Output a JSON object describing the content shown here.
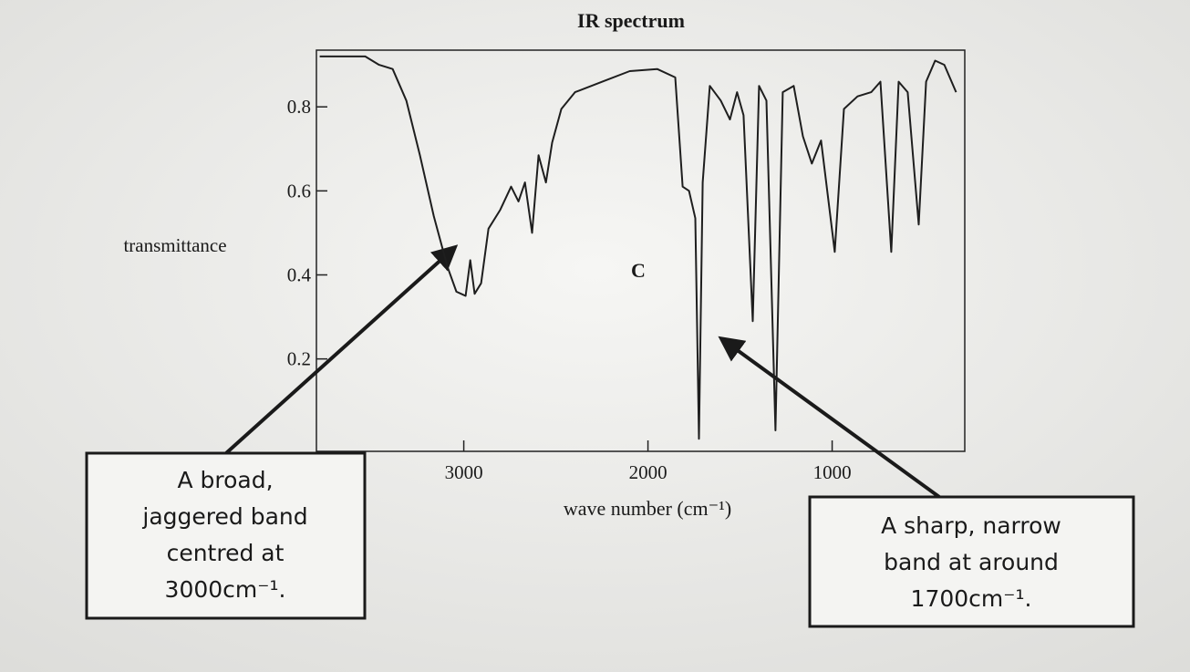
{
  "chart_data": {
    "type": "line",
    "title": "IR spectrum",
    "xlabel": "wave number (cm⁻¹)",
    "ylabel": "transmittance",
    "inner_label": "C",
    "x": [
      3782,
      3535,
      3460,
      3386,
      3312,
      3238,
      3163,
      3089,
      3040,
      2990,
      2965,
      2941,
      2906,
      2866,
      2802,
      2743,
      2703,
      2668,
      2629,
      2594,
      2554,
      2520,
      2470,
      2396,
      2248,
      2099,
      1950,
      1852,
      1812,
      1777,
      1743,
      1723,
      1703,
      1664,
      1605,
      1555,
      1516,
      1481,
      1431,
      1397,
      1357,
      1308,
      1268,
      1209,
      1159,
      1110,
      1060,
      986,
      936,
      862,
      788,
      738,
      679,
      639,
      590,
      530,
      490,
      441,
      391,
      327
    ],
    "values": [
      0.92,
      0.92,
      0.9,
      0.89,
      0.815,
      0.685,
      0.54,
      0.42,
      0.36,
      0.35,
      0.435,
      0.355,
      0.38,
      0.51,
      0.555,
      0.61,
      0.575,
      0.62,
      0.5,
      0.685,
      0.62,
      0.715,
      0.795,
      0.835,
      0.86,
      0.885,
      0.89,
      0.87,
      0.61,
      0.6,
      0.535,
      0.01,
      0.62,
      0.85,
      0.815,
      0.77,
      0.835,
      0.78,
      0.29,
      0.85,
      0.815,
      0.03,
      0.835,
      0.85,
      0.73,
      0.665,
      0.72,
      0.455,
      0.795,
      0.825,
      0.835,
      0.86,
      0.455,
      0.86,
      0.835,
      0.52,
      0.86,
      0.91,
      0.9,
      0.835
    ],
    "color": "#1e1e1e",
    "xlim": [
      3800,
      280
    ],
    "ylim": [
      -0.02,
      0.935
    ],
    "xticks": [
      3000,
      2000,
      1000
    ],
    "yticks": [
      0.2,
      0.4,
      0.6,
      0.8
    ],
    "annotations": [
      {
        "lines": [
          "A broad,",
          "jaggered band",
          "centred at",
          "3000cm⁻¹."
        ]
      },
      {
        "lines": [
          "A sharp, narrow",
          "band at around",
          "1700cm⁻¹."
        ]
      }
    ]
  }
}
